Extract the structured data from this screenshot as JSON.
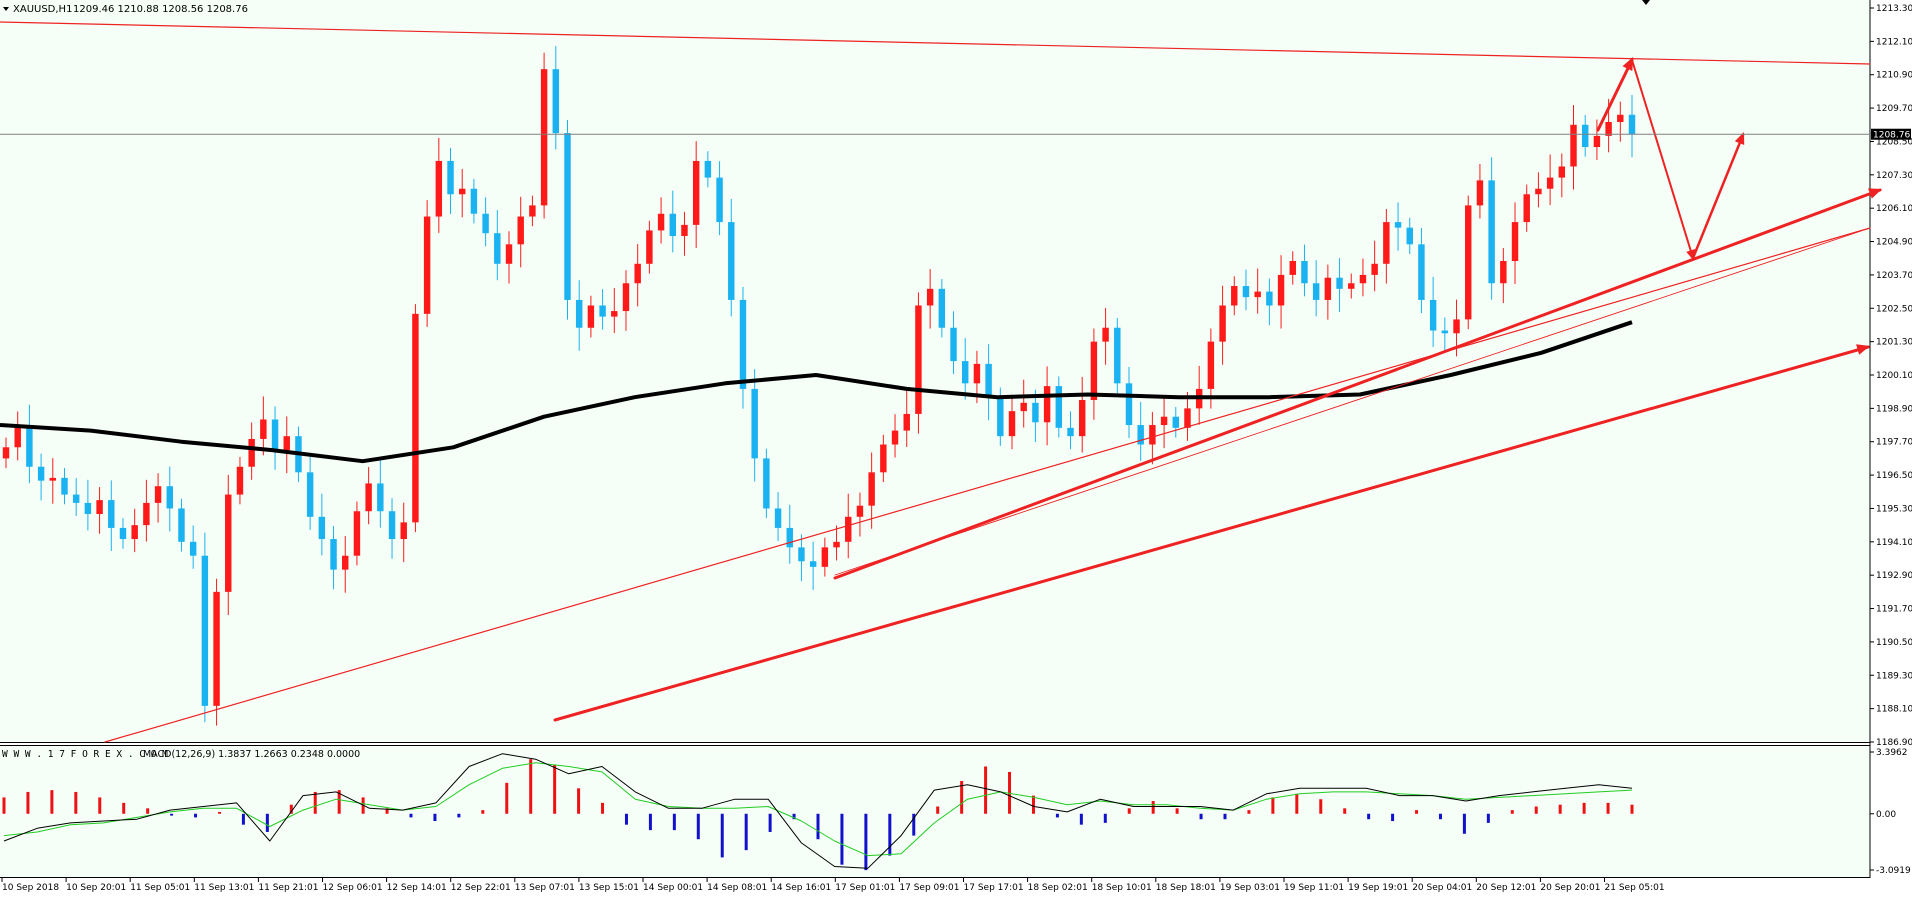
{
  "header": {
    "symbol": "XAUUSD,H1",
    "ohlc": "1209.46 1210.88 1208.56 1208.76",
    "dropdown_icon": "triangle-down-icon"
  },
  "indicator": {
    "source": "W W W . 1 7 F O R E X . C O M",
    "label": "MACD(12,26,9) 1.3837 1.2663 0.2348 0.0000"
  },
  "current_price_label": "1208.76",
  "colors": {
    "chart_bg": "#f5fff8",
    "bull": "#ff1a1a",
    "bear": "#1ab2f0",
    "ma": "#000000",
    "trend": "#ee2222",
    "macd_pos": "#ee1111",
    "macd_neg": "#1111cc",
    "signal": "#22cc22"
  },
  "chart_data": [
    {
      "type": "candlestick",
      "y_ticks": [
        "1213.30",
        "1212.10",
        "1210.90",
        "1209.70",
        "1208.50",
        "1207.30",
        "1206.10",
        "1204.90",
        "1203.70",
        "1202.50",
        "1201.30",
        "1200.10",
        "1198.90",
        "1197.70",
        "1196.50",
        "1195.30",
        "1194.10",
        "1192.90",
        "1191.70",
        "1190.50",
        "1189.30",
        "1188.10",
        "1186.90"
      ],
      "ylim": [
        1186.9,
        1213.3
      ],
      "x_ticks": [
        "10 Sep 2018",
        "10 Sep 20:01",
        "11 Sep 05:01",
        "11 Sep 13:01",
        "11 Sep 21:01",
        "12 Sep 06:01",
        "12 Sep 14:01",
        "12 Sep 22:01",
        "13 Sep 07:01",
        "13 Sep 15:01",
        "14 Sep 00:01",
        "14 Sep 08:01",
        "14 Sep 16:01",
        "17 Sep 01:01",
        "17 Sep 09:01",
        "17 Sep 17:01",
        "18 Sep 02:01",
        "18 Sep 10:01",
        "18 Sep 18:01",
        "19 Sep 03:01",
        "19 Sep 11:01",
        "19 Sep 19:01",
        "20 Sep 04:01",
        "20 Sep 12:01",
        "20 Sep 20:01",
        "21 Sep 05:01"
      ],
      "key_prices": [
        1197.5,
        1198.2,
        1196.8,
        1196.3,
        1196.4,
        1195.8,
        1195.5,
        1195.1,
        1195.6,
        1194.6,
        1194.2,
        1194.7,
        1195.5,
        1196.1,
        1195.3,
        1194.1,
        1193.6,
        1188.2,
        1192.3,
        1195.8,
        1196.8,
        1197.8,
        1198.5,
        1197.4,
        1197.9,
        1196.6,
        1195.0,
        1194.2,
        1193.1,
        1193.6,
        1195.2,
        1196.2,
        1195.2,
        1194.2,
        1194.8,
        1202.3,
        1205.8,
        1207.8,
        1206.6,
        1206.8,
        1205.9,
        1205.2,
        1204.1,
        1204.8,
        1205.8,
        1206.2,
        1211.1,
        1208.8,
        1202.8,
        1201.8,
        1202.6,
        1202.2,
        1202.4,
        1203.4,
        1204.1,
        1205.3,
        1205.9,
        1205.1,
        1205.5,
        1207.8,
        1207.2,
        1205.6,
        1202.8,
        1199.6,
        1197.1,
        1195.3,
        1194.6,
        1193.9,
        1193.4,
        1193.2,
        1193.9,
        1194.1,
        1195.0,
        1195.4,
        1196.6,
        1197.6,
        1198.1,
        1198.7,
        1202.6,
        1203.2,
        1201.8,
        1200.6,
        1199.8,
        1200.5,
        1199.3,
        1197.9,
        1198.8,
        1199.1,
        1198.4,
        1199.7,
        1198.2,
        1197.9,
        1199.2,
        1201.3,
        1201.8,
        1199.8,
        1198.3,
        1197.6,
        1198.3,
        1198.6,
        1198.2,
        1198.9,
        1199.6,
        1201.3,
        1202.6,
        1203.3,
        1202.9,
        1203.1,
        1202.6,
        1203.7,
        1204.2,
        1203.4,
        1202.8,
        1203.6,
        1203.2,
        1203.4,
        1203.7,
        1204.1,
        1205.6,
        1205.4,
        1204.8,
        1202.8,
        1201.7,
        1201.6,
        1202.1,
        1206.2,
        1207.1,
        1203.4,
        1204.2,
        1205.6,
        1206.6,
        1206.8,
        1207.2,
        1207.6,
        1209.1,
        1208.3,
        1208.7,
        1209.2,
        1209.46,
        1208.76
      ],
      "moving_average": {
        "values": [
          1198.3,
          1198.1,
          1197.7,
          1197.4,
          1197.0,
          1197.5,
          1198.6,
          1199.3,
          1199.8,
          1200.1,
          1199.6,
          1199.3,
          1199.4,
          1199.3,
          1199.3,
          1199.4,
          1200.1,
          1200.9,
          1202.0
        ]
      },
      "annotations": [
        "trendline-support",
        "trendline-resistance",
        "projection-arrows"
      ]
    },
    {
      "type": "macd",
      "y_ticks": [
        "3.3962",
        "0.00",
        "-3.0919"
      ],
      "ylim": [
        -3.0919,
        3.3962
      ],
      "histogram": [
        0.9,
        1.2,
        1.3,
        1.2,
        0.9,
        0.6,
        0.3,
        -0.1,
        -0.2,
        0.1,
        -0.6,
        -1.0,
        0.5,
        1.2,
        1.3,
        0.9,
        0.3,
        -0.2,
        -0.4,
        -0.2,
        0.2,
        1.7,
        3.0,
        2.7,
        1.4,
        0.6,
        -0.6,
        -0.9,
        -0.9,
        -1.4,
        -2.4,
        -2.0,
        -1.0,
        -0.3,
        -1.4,
        -2.8,
        -3.1,
        -2.3,
        -1.2,
        0.4,
        1.8,
        2.6,
        2.3,
        1.0,
        -0.2,
        -0.6,
        -0.5,
        0.3,
        0.7,
        0.3,
        -0.3,
        -0.3,
        0.2,
        0.9,
        1.1,
        0.8,
        0.3,
        -0.3,
        -0.4,
        0.2,
        -0.3,
        -1.1,
        -0.5,
        0.2,
        0.4,
        0.5,
        0.6,
        0.6,
        0.5
      ],
      "macd_line": [
        -1.5,
        -0.8,
        -0.5,
        -0.4,
        -0.3,
        0.2,
        0.4,
        0.6,
        -1.5,
        1.0,
        1.2,
        0.3,
        0.2,
        0.6,
        2.6,
        3.3,
        3.0,
        2.2,
        2.6,
        1.2,
        0.3,
        0.3,
        0.8,
        0.8,
        -1.6,
        -2.9,
        -3.0,
        -1.2,
        1.3,
        1.6,
        1.2,
        0.4,
        0.1,
        0.8,
        0.4,
        0.4,
        0.4,
        0.2,
        1.1,
        1.4,
        1.4,
        1.4,
        1.0,
        1.0,
        0.7,
        1.0,
        1.2,
        1.4,
        1.6,
        1.4
      ],
      "signal_line": [
        -1.2,
        -1.0,
        -0.6,
        -0.5,
        -0.2,
        0.1,
        0.3,
        0.3,
        -0.7,
        0.2,
        0.8,
        0.5,
        0.2,
        0.4,
        1.6,
        2.5,
        2.8,
        2.6,
        2.3,
        0.8,
        0.4,
        0.3,
        0.3,
        0.4,
        -0.4,
        -1.5,
        -2.3,
        -2.2,
        -0.5,
        0.8,
        1.2,
        0.9,
        0.5,
        0.7,
        0.5,
        0.5,
        0.3,
        0.2,
        0.8,
        1.1,
        1.2,
        1.2,
        1.1,
        1.0,
        0.8,
        0.9,
        1.0,
        1.1,
        1.2,
        1.3
      ]
    }
  ]
}
